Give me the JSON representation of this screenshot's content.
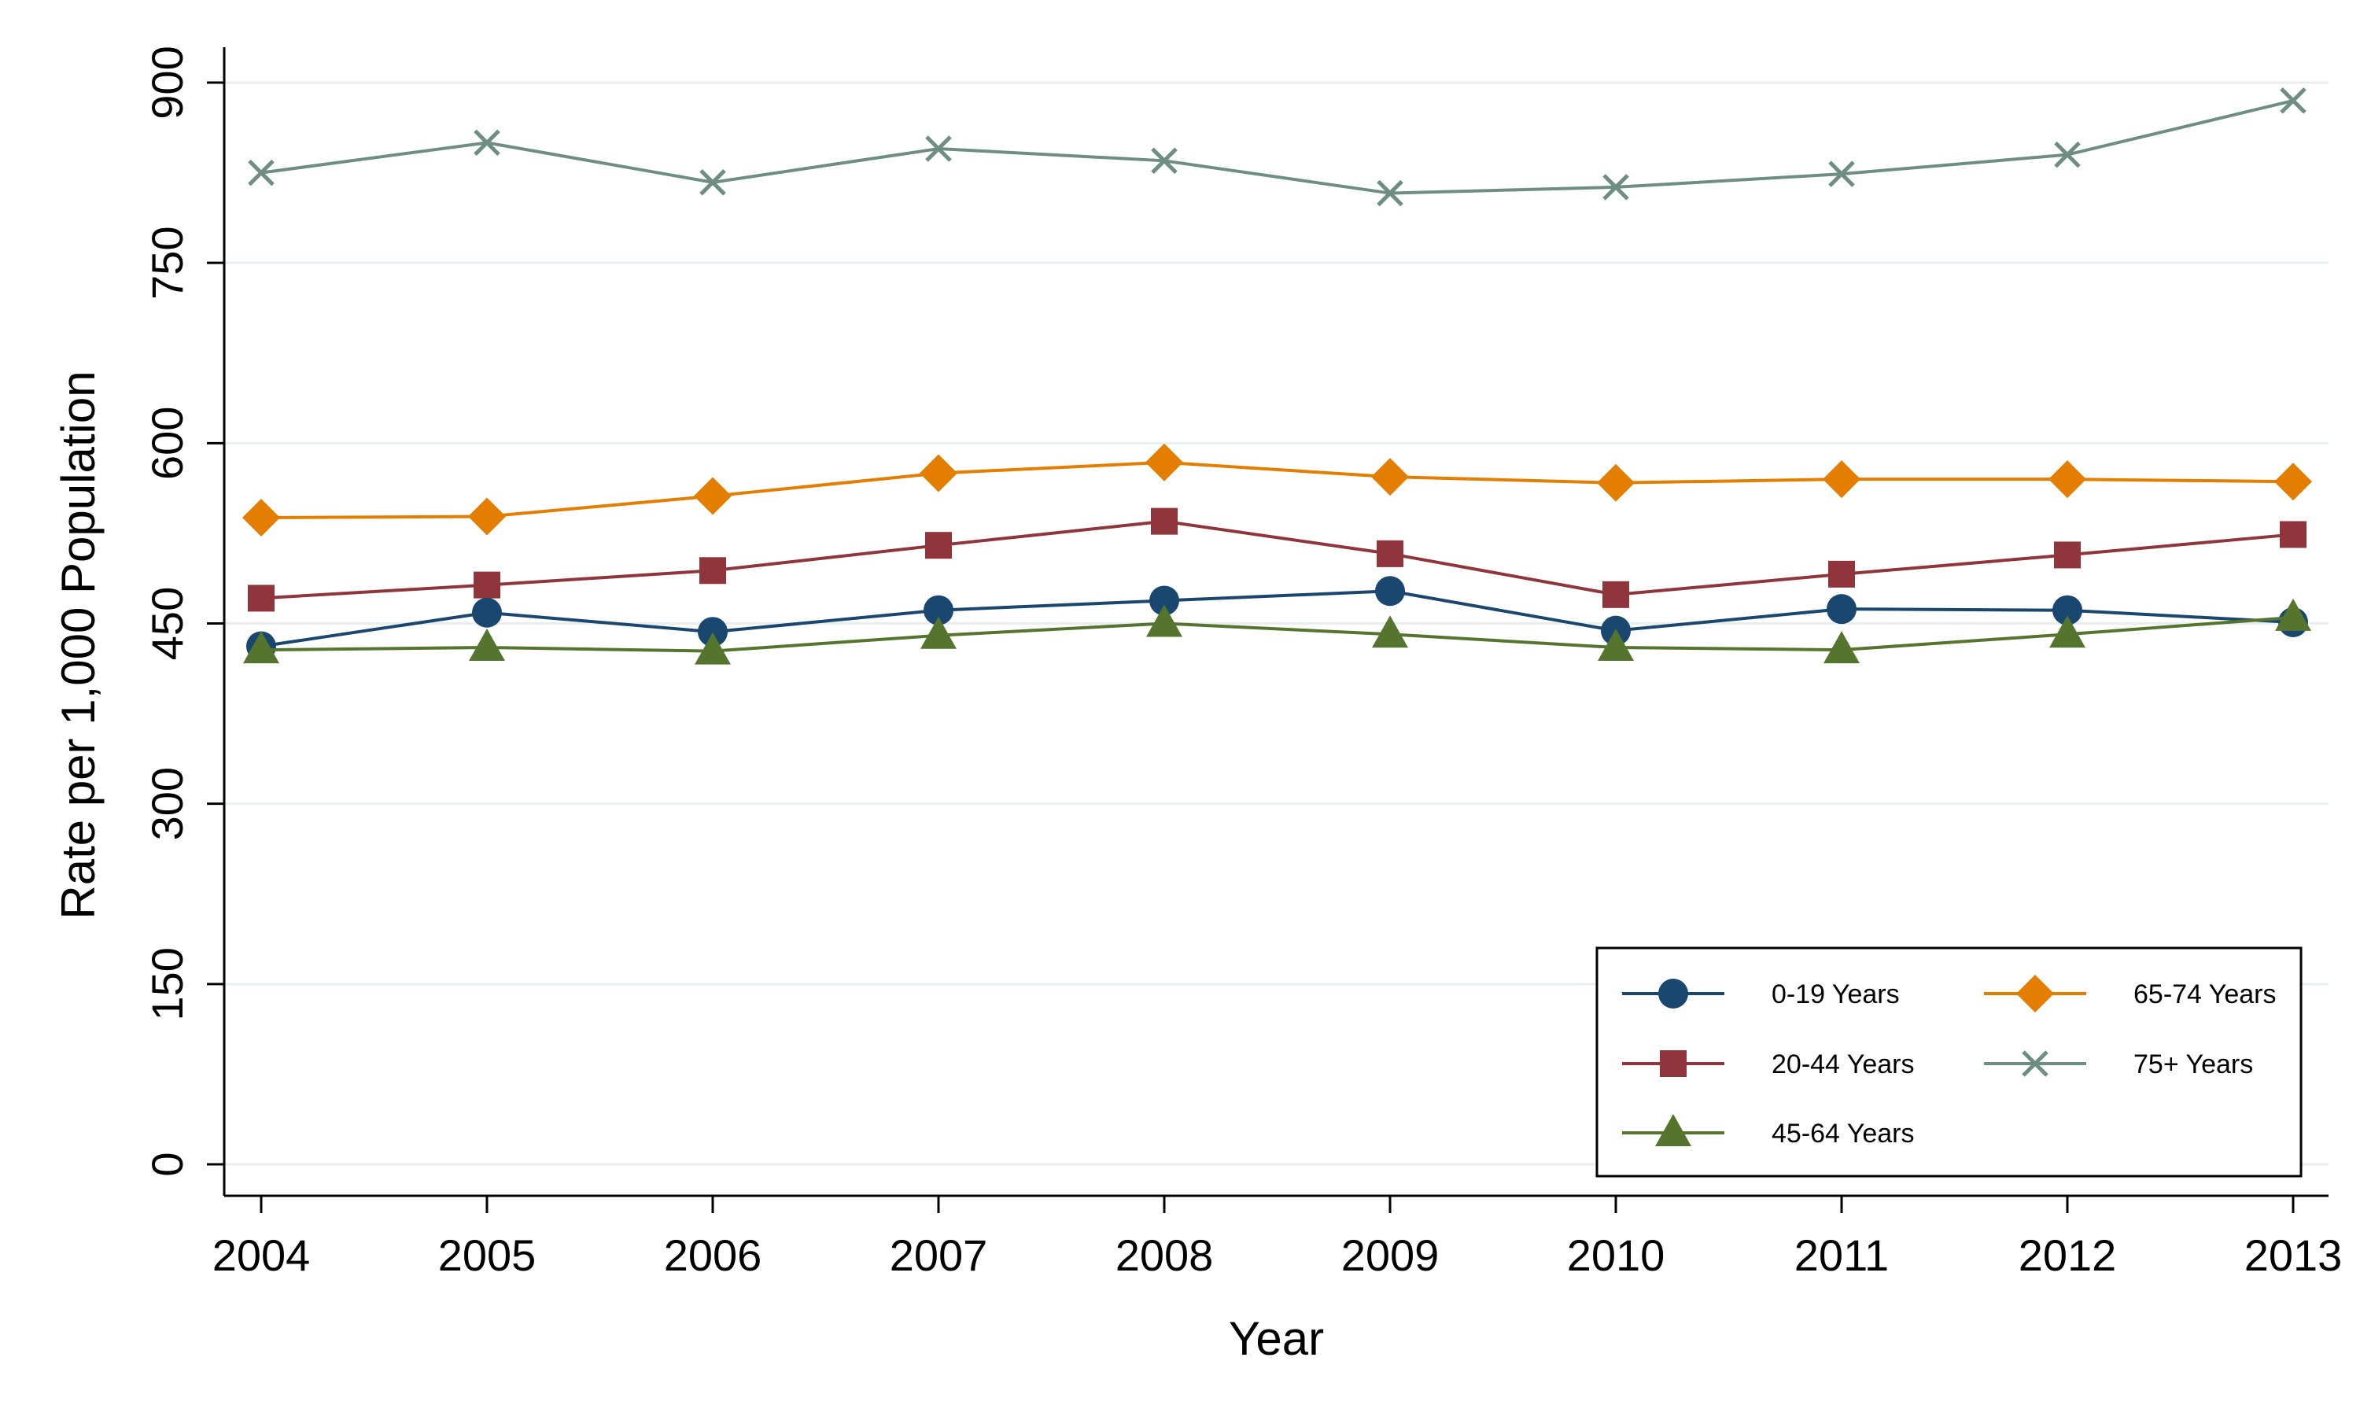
{
  "chart_data": {
    "type": "line",
    "title": "",
    "xlabel": "Year",
    "ylabel": "Rate per 1,000 Population",
    "x": [
      2004,
      2005,
      2006,
      2007,
      2008,
      2009,
      2010,
      2011,
      2012,
      2013
    ],
    "xticks": [
      "2004",
      "2005",
      "2006",
      "2007",
      "2008",
      "2009",
      "2010",
      "2011",
      "2012",
      "2013"
    ],
    "ylim": [
      0,
      900
    ],
    "yticks": [
      0,
      150,
      300,
      450,
      600,
      750,
      900
    ],
    "grid": true,
    "legend_position": "bottom-right",
    "series": [
      {
        "name": "0-19 Years",
        "color": "#1a476f",
        "marker": "circle",
        "values": [
          431,
          459,
          443,
          461,
          469,
          477,
          444,
          462,
          461,
          451
        ]
      },
      {
        "name": "20-44 Years",
        "color": "#90353b",
        "marker": "square",
        "values": [
          471,
          482,
          494,
          515,
          535,
          508,
          474,
          491,
          507,
          524
        ]
      },
      {
        "name": "45-64 Years",
        "color": "#55752f",
        "marker": "triangle",
        "values": [
          428,
          430,
          427,
          440,
          450,
          441,
          430,
          428,
          441,
          455
        ]
      },
      {
        "name": "65-74 Years",
        "color": "#e37e00",
        "marker": "diamond",
        "values": [
          538,
          539,
          556,
          575,
          584,
          572,
          567,
          570,
          570,
          568
        ]
      },
      {
        "name": "75+ Years",
        "color": "#6e8e84",
        "marker": "x",
        "values": [
          825,
          850,
          817,
          845,
          835,
          808,
          813,
          824,
          840,
          885
        ]
      }
    ]
  }
}
